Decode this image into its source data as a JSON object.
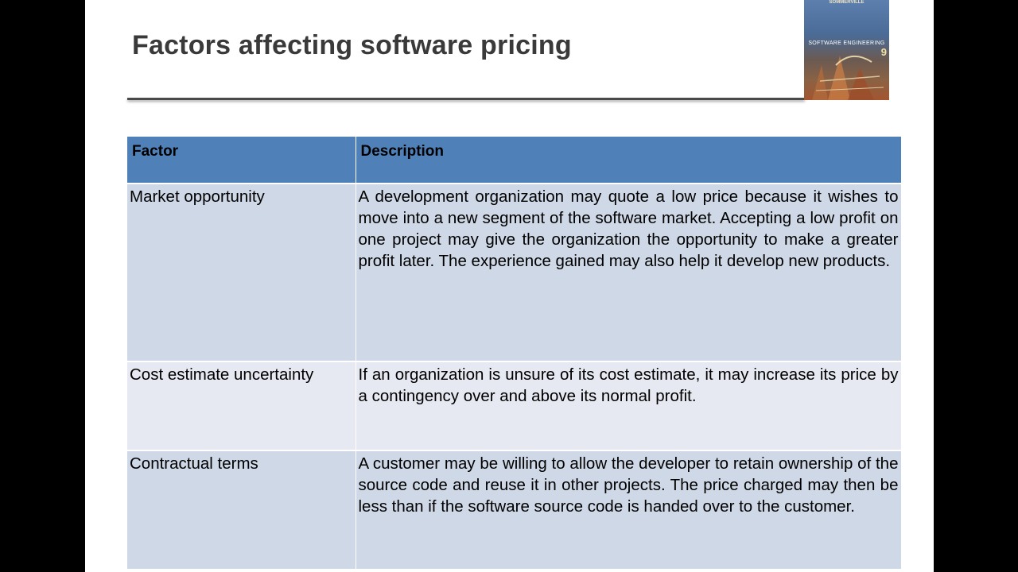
{
  "slide": {
    "title": "Factors affecting software pricing"
  },
  "book_cover": {
    "author": "SOMMERVILLE",
    "title": "SOFTWARE ENGINEERING",
    "edition": "9"
  },
  "table": {
    "headers": {
      "factor": "Factor",
      "description": "Description"
    },
    "rows": [
      {
        "factor": "Market opportunity",
        "description": "A development organization may quote a low price because it wishes to move into a new segment of the software market. Accepting a low profit on one project may give the organization the opportunity to make a greater profit later. The experience gained may also help it develop new products."
      },
      {
        "factor": "Cost estimate uncertainty",
        "description": "If an organization is unsure of its cost estimate, it may increase its price by a contingency over and above its normal profit."
      },
      {
        "factor": "Contractual terms",
        "description": "A customer may be willing to allow the developer to retain ownership of the source code and reuse it in other projects. The price charged may then be less than if the software source code is handed over to the customer."
      }
    ]
  },
  "colors": {
    "header_bg": "#4f81b8",
    "row_dark": "#cfd8e6",
    "row_light": "#e6e9f1"
  }
}
